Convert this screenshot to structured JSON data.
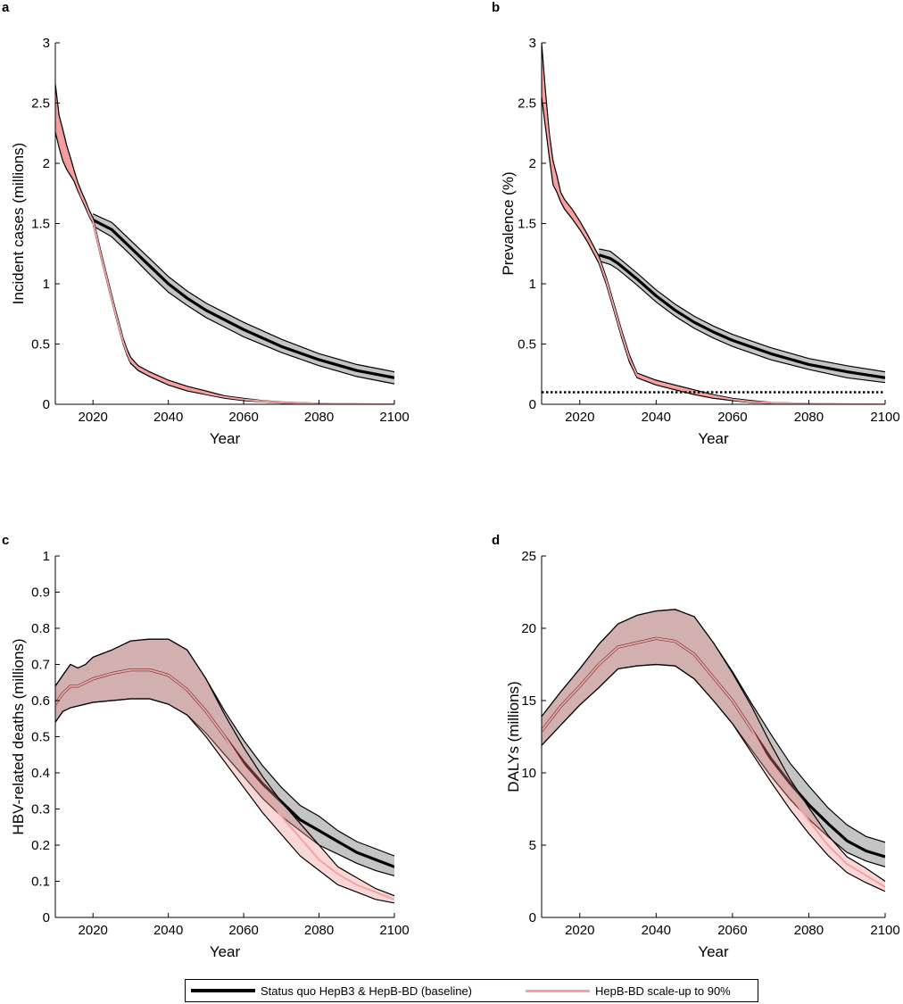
{
  "legend": {
    "items": [
      {
        "label": "Status quo HepB3 & HepB-BD (baseline)",
        "color": "#000000"
      },
      {
        "label": "HepB-BD scale-up to 90%",
        "color": "#f4a3a3"
      }
    ]
  },
  "chart_data": [
    {
      "panel": "a",
      "type": "line",
      "xlabel": "Year",
      "ylabel": "Incident cases (millions)",
      "xlim": [
        2010,
        2100
      ],
      "ylim": [
        0,
        3
      ],
      "xticks": [
        2020,
        2040,
        2060,
        2080,
        2100
      ],
      "yticks": [
        0,
        0.5,
        1,
        1.5,
        2,
        2.5,
        3
      ],
      "series": [
        {
          "name": "Status quo HepB3 & HepB-BD (baseline)",
          "x": [
            2020,
            2025,
            2030,
            2035,
            2040,
            2045,
            2050,
            2060,
            2070,
            2080,
            2090,
            2100
          ],
          "mean": [
            1.53,
            1.45,
            1.3,
            1.15,
            1.0,
            0.88,
            0.78,
            0.62,
            0.48,
            0.37,
            0.28,
            0.22
          ],
          "lower": [
            1.48,
            1.39,
            1.24,
            1.08,
            0.93,
            0.82,
            0.72,
            0.56,
            0.43,
            0.32,
            0.23,
            0.17
          ],
          "upper": [
            1.58,
            1.51,
            1.36,
            1.21,
            1.06,
            0.94,
            0.84,
            0.68,
            0.54,
            0.42,
            0.33,
            0.27
          ]
        },
        {
          "name": "HepB-BD scale-up to 90%",
          "x": [
            2010,
            2011,
            2012,
            2013,
            2014,
            2015,
            2016,
            2017,
            2018,
            2019,
            2020,
            2022,
            2024,
            2026,
            2028,
            2029,
            2030,
            2032,
            2035,
            2040,
            2045,
            2050,
            2055,
            2060,
            2065,
            2070,
            2080,
            2090,
            2100
          ],
          "mean": [
            2.45,
            2.25,
            2.15,
            2.05,
            1.97,
            1.89,
            1.8,
            1.72,
            1.66,
            1.58,
            1.52,
            1.25,
            1.0,
            0.75,
            0.52,
            0.43,
            0.36,
            0.3,
            0.25,
            0.18,
            0.13,
            0.09,
            0.06,
            0.04,
            0.025,
            0.015,
            0.005,
            0.002,
            0.001
          ],
          "lower": [
            2.26,
            2.13,
            2.02,
            1.95,
            1.9,
            1.85,
            1.77,
            1.7,
            1.63,
            1.56,
            1.5,
            1.23,
            0.98,
            0.73,
            0.5,
            0.41,
            0.34,
            0.28,
            0.23,
            0.16,
            0.11,
            0.08,
            0.05,
            0.03,
            0.02,
            0.01,
            0.003,
            0.001,
            0.0
          ],
          "upper": [
            2.66,
            2.4,
            2.28,
            2.15,
            2.05,
            1.94,
            1.84,
            1.76,
            1.69,
            1.61,
            1.55,
            1.28,
            1.03,
            0.78,
            0.55,
            0.46,
            0.39,
            0.32,
            0.27,
            0.2,
            0.15,
            0.11,
            0.07,
            0.05,
            0.03,
            0.02,
            0.008,
            0.004,
            0.002
          ]
        }
      ]
    },
    {
      "panel": "b",
      "type": "line",
      "xlabel": "Year",
      "ylabel": "Prevalence (%)",
      "xlim": [
        2010,
        2100
      ],
      "ylim": [
        0,
        3
      ],
      "xticks": [
        2020,
        2040,
        2060,
        2080,
        2100
      ],
      "yticks": [
        0,
        0.5,
        1,
        1.5,
        2,
        2.5,
        3
      ],
      "reference_line": {
        "y": 0.1,
        "style": "dotted"
      },
      "series": [
        {
          "name": "Status quo HepB3 & HepB-BD (baseline)",
          "x": [
            2025,
            2028,
            2030,
            2035,
            2040,
            2045,
            2050,
            2055,
            2060,
            2070,
            2080,
            2090,
            2100
          ],
          "mean": [
            1.24,
            1.21,
            1.17,
            1.04,
            0.9,
            0.78,
            0.68,
            0.6,
            0.53,
            0.42,
            0.33,
            0.27,
            0.22
          ],
          "lower": [
            1.19,
            1.16,
            1.12,
            0.99,
            0.85,
            0.73,
            0.63,
            0.55,
            0.48,
            0.37,
            0.29,
            0.22,
            0.18
          ],
          "upper": [
            1.29,
            1.27,
            1.22,
            1.09,
            0.95,
            0.83,
            0.73,
            0.65,
            0.58,
            0.47,
            0.38,
            0.32,
            0.27
          ]
        },
        {
          "name": "HepB-BD scale-up to 90%",
          "x": [
            2010,
            2011,
            2012,
            2013,
            2014,
            2015,
            2016,
            2018,
            2020,
            2022,
            2024,
            2025,
            2027,
            2029,
            2031,
            2033,
            2035,
            2040,
            2045,
            2050,
            2055,
            2060,
            2065,
            2070,
            2080,
            2090,
            2100
          ],
          "mean": [
            2.8,
            2.45,
            2.15,
            1.92,
            1.82,
            1.72,
            1.66,
            1.58,
            1.48,
            1.38,
            1.26,
            1.2,
            1.02,
            0.8,
            0.58,
            0.38,
            0.24,
            0.18,
            0.14,
            0.1,
            0.07,
            0.04,
            0.02,
            0.012,
            0.005,
            0.002,
            0.001
          ],
          "lower": [
            2.55,
            2.3,
            2.05,
            1.82,
            1.76,
            1.68,
            1.62,
            1.54,
            1.45,
            1.35,
            1.23,
            1.17,
            0.99,
            0.77,
            0.55,
            0.35,
            0.22,
            0.16,
            0.12,
            0.08,
            0.05,
            0.03,
            0.015,
            0.008,
            0.003,
            0.001,
            0.0
          ],
          "upper": [
            3.0,
            2.6,
            2.25,
            2.02,
            1.9,
            1.76,
            1.7,
            1.62,
            1.52,
            1.41,
            1.29,
            1.23,
            1.05,
            0.83,
            0.61,
            0.41,
            0.26,
            0.2,
            0.16,
            0.12,
            0.08,
            0.05,
            0.03,
            0.016,
            0.007,
            0.003,
            0.002
          ]
        }
      ]
    },
    {
      "panel": "c",
      "type": "line",
      "xlabel": "Year",
      "ylabel": "HBV-related deaths (millions)",
      "xlim": [
        2010,
        2100
      ],
      "ylim": [
        0,
        1
      ],
      "xticks": [
        2020,
        2040,
        2060,
        2080,
        2100
      ],
      "yticks": [
        0,
        0.1,
        0.2,
        0.3,
        0.4,
        0.5,
        0.6,
        0.7,
        0.8,
        0.9,
        1
      ],
      "series": [
        {
          "name": "Status quo HepB3 & HepB-BD (baseline)",
          "x": [
            2010,
            2012,
            2014,
            2016,
            2018,
            2020,
            2025,
            2030,
            2035,
            2040,
            2045,
            2050,
            2055,
            2060,
            2065,
            2070,
            2075,
            2080,
            2085,
            2090,
            2095,
            2100
          ],
          "mean": [
            0.59,
            0.62,
            0.64,
            0.64,
            0.65,
            0.66,
            0.675,
            0.685,
            0.685,
            0.67,
            0.63,
            0.57,
            0.5,
            0.43,
            0.37,
            0.32,
            0.27,
            0.24,
            0.21,
            0.18,
            0.16,
            0.14
          ],
          "lower": [
            0.54,
            0.57,
            0.58,
            0.585,
            0.59,
            0.595,
            0.6,
            0.605,
            0.605,
            0.59,
            0.56,
            0.51,
            0.45,
            0.39,
            0.33,
            0.28,
            0.24,
            0.2,
            0.175,
            0.15,
            0.13,
            0.115
          ],
          "upper": [
            0.64,
            0.67,
            0.7,
            0.69,
            0.7,
            0.72,
            0.74,
            0.765,
            0.77,
            0.77,
            0.74,
            0.66,
            0.57,
            0.49,
            0.42,
            0.36,
            0.31,
            0.28,
            0.24,
            0.21,
            0.19,
            0.17
          ]
        },
        {
          "name": "HepB-BD scale-up to 90%",
          "x": [
            2010,
            2012,
            2014,
            2016,
            2018,
            2020,
            2025,
            2030,
            2035,
            2040,
            2045,
            2050,
            2055,
            2060,
            2065,
            2070,
            2075,
            2080,
            2085,
            2090,
            2095,
            2100
          ],
          "mean": [
            0.59,
            0.62,
            0.64,
            0.64,
            0.65,
            0.66,
            0.675,
            0.685,
            0.685,
            0.67,
            0.63,
            0.57,
            0.5,
            0.42,
            0.35,
            0.28,
            0.22,
            0.16,
            0.12,
            0.09,
            0.07,
            0.05
          ],
          "lower": [
            0.54,
            0.57,
            0.58,
            0.585,
            0.59,
            0.595,
            0.6,
            0.605,
            0.605,
            0.59,
            0.56,
            0.5,
            0.43,
            0.36,
            0.29,
            0.23,
            0.17,
            0.13,
            0.09,
            0.07,
            0.05,
            0.04
          ],
          "upper": [
            0.64,
            0.67,
            0.7,
            0.69,
            0.7,
            0.72,
            0.74,
            0.765,
            0.77,
            0.77,
            0.74,
            0.66,
            0.56,
            0.47,
            0.39,
            0.32,
            0.26,
            0.2,
            0.14,
            0.11,
            0.08,
            0.06
          ]
        }
      ]
    },
    {
      "panel": "d",
      "type": "line",
      "xlabel": "Year",
      "ylabel": "DALYs (millions)",
      "xlim": [
        2010,
        2100
      ],
      "ylim": [
        0,
        25
      ],
      "xticks": [
        2020,
        2040,
        2060,
        2080,
        2100
      ],
      "yticks": [
        0,
        5,
        10,
        15,
        20,
        25
      ],
      "series": [
        {
          "name": "Status quo HepB3 & HepB-BD (baseline)",
          "x": [
            2010,
            2015,
            2020,
            2025,
            2030,
            2035,
            2040,
            2045,
            2050,
            2055,
            2060,
            2065,
            2070,
            2075,
            2080,
            2085,
            2090,
            2095,
            2100
          ],
          "mean": [
            12.9,
            14.6,
            16.0,
            17.5,
            18.7,
            19.0,
            19.3,
            19.1,
            18.2,
            16.6,
            15.0,
            13.0,
            11.0,
            9.3,
            7.8,
            6.5,
            5.3,
            4.6,
            4.2
          ],
          "lower": [
            11.9,
            13.3,
            14.7,
            15.9,
            17.2,
            17.4,
            17.5,
            17.4,
            16.5,
            15.0,
            13.4,
            11.6,
            9.8,
            8.2,
            6.8,
            5.6,
            4.5,
            3.9,
            3.5
          ],
          "upper": [
            13.9,
            15.6,
            17.2,
            18.9,
            20.3,
            20.9,
            21.2,
            21.3,
            20.8,
            19.0,
            17.0,
            14.8,
            12.7,
            10.7,
            9.1,
            7.6,
            6.4,
            5.6,
            5.2
          ]
        },
        {
          "name": "HepB-BD scale-up to 90%",
          "x": [
            2010,
            2015,
            2020,
            2025,
            2030,
            2035,
            2040,
            2045,
            2050,
            2055,
            2060,
            2065,
            2070,
            2075,
            2080,
            2085,
            2090,
            2095,
            2100
          ],
          "mean": [
            12.9,
            14.6,
            16.0,
            17.5,
            18.7,
            19.0,
            19.3,
            19.1,
            18.2,
            16.6,
            15.0,
            13.0,
            10.6,
            8.5,
            6.7,
            5.0,
            3.7,
            2.9,
            2.1
          ],
          "lower": [
            11.9,
            13.3,
            14.7,
            15.9,
            17.2,
            17.4,
            17.5,
            17.4,
            16.5,
            15.0,
            13.4,
            11.4,
            9.4,
            7.5,
            5.8,
            4.3,
            3.1,
            2.4,
            1.8
          ],
          "upper": [
            13.9,
            15.6,
            17.2,
            18.9,
            20.3,
            20.9,
            21.2,
            21.3,
            20.8,
            19.0,
            16.9,
            14.6,
            12.0,
            9.6,
            7.6,
            5.7,
            4.2,
            3.4,
            2.5
          ]
        }
      ]
    }
  ]
}
